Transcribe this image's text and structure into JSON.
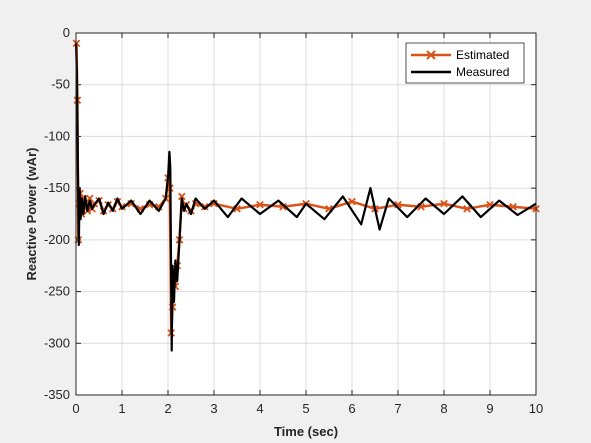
{
  "chart_data": {
    "type": "line",
    "title": "",
    "xlabel": "Time (sec)",
    "ylabel": "Reactive Power (wAr)",
    "xlim": [
      0,
      10
    ],
    "ylim": [
      -350,
      0
    ],
    "xticks": [
      0,
      1,
      2,
      3,
      4,
      5,
      6,
      7,
      8,
      9,
      10
    ],
    "yticks": [
      0,
      -50,
      -100,
      -150,
      -200,
      -250,
      -300,
      -350
    ],
    "grid": true,
    "legend_position": "top-right",
    "series": [
      {
        "name": "Estimated",
        "color": "#d95319",
        "marker": "x",
        "x": [
          0.01,
          0.03,
          0.05,
          0.07,
          0.09,
          0.12,
          0.15,
          0.2,
          0.25,
          0.3,
          0.35,
          0.4,
          0.5,
          0.6,
          0.7,
          0.8,
          0.9,
          1.0,
          1.2,
          1.4,
          1.6,
          1.8,
          1.95,
          2.0,
          2.04,
          2.07,
          2.1,
          2.13,
          2.16,
          2.2,
          2.25,
          2.3,
          2.35,
          2.4,
          2.5,
          2.6,
          2.8,
          3.0,
          3.5,
          4.0,
          4.5,
          5.0,
          5.5,
          6.0,
          6.5,
          7.0,
          7.5,
          8.0,
          8.5,
          9.0,
          9.5,
          10.0
        ],
        "y": [
          -10,
          -65,
          -200,
          -165,
          -155,
          -175,
          -160,
          -168,
          -172,
          -160,
          -170,
          -165,
          -162,
          -172,
          -166,
          -170,
          -163,
          -168,
          -165,
          -170,
          -166,
          -168,
          -160,
          -140,
          -150,
          -290,
          -265,
          -230,
          -245,
          -225,
          -200,
          -158,
          -170,
          -166,
          -172,
          -165,
          -168,
          -165,
          -170,
          -166,
          -168,
          -165,
          -170,
          -163,
          -170,
          -166,
          -168,
          -165,
          -170,
          -166,
          -168,
          -170
        ]
      },
      {
        "name": "Measured",
        "color": "#000000",
        "marker": "none",
        "x": [
          0.0,
          0.02,
          0.04,
          0.06,
          0.08,
          0.1,
          0.13,
          0.16,
          0.2,
          0.25,
          0.3,
          0.35,
          0.4,
          0.5,
          0.6,
          0.7,
          0.8,
          0.9,
          1.0,
          1.2,
          1.4,
          1.6,
          1.8,
          1.95,
          2.0,
          2.03,
          2.05,
          2.08,
          2.1,
          2.13,
          2.16,
          2.2,
          2.25,
          2.3,
          2.35,
          2.4,
          2.5,
          2.6,
          2.8,
          3.0,
          3.3,
          3.6,
          4.0,
          4.4,
          4.8,
          5.0,
          5.4,
          5.8,
          6.2,
          6.4,
          6.6,
          6.8,
          7.2,
          7.6,
          8.0,
          8.4,
          8.8,
          9.2,
          9.6,
          10.0
        ],
        "y": [
          -10,
          -40,
          -120,
          -205,
          -150,
          -180,
          -160,
          -175,
          -158,
          -172,
          -162,
          -170,
          -166,
          -160,
          -175,
          -164,
          -172,
          -160,
          -170,
          -162,
          -175,
          -162,
          -172,
          -160,
          -140,
          -115,
          -130,
          -307,
          -225,
          -260,
          -220,
          -240,
          -200,
          -160,
          -172,
          -165,
          -175,
          -160,
          -170,
          -162,
          -178,
          -160,
          -175,
          -162,
          -178,
          -165,
          -180,
          -158,
          -185,
          -150,
          -190,
          -160,
          -178,
          -160,
          -175,
          -158,
          -178,
          -162,
          -176,
          -165
        ]
      }
    ]
  }
}
